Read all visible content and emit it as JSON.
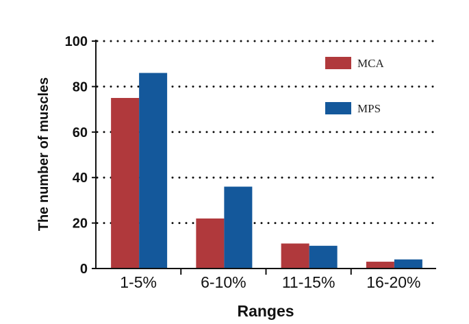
{
  "chart_data": {
    "type": "bar",
    "title": "",
    "xlabel": "Ranges",
    "ylabel": "The number of muscles",
    "categories": [
      "1-5%",
      "6-10%",
      "11-15%",
      "16-20%"
    ],
    "series": [
      {
        "name": "MCA",
        "color": "#b0393c",
        "values": [
          75,
          22,
          11,
          3
        ]
      },
      {
        "name": "MPS",
        "color": "#14589b",
        "values": [
          86,
          36,
          10,
          4
        ]
      }
    ],
    "ylim": [
      0,
      100
    ],
    "yticks": [
      0,
      20,
      40,
      60,
      80,
      100
    ],
    "grid": "dotted horizontal",
    "legend_position": "top-right"
  }
}
